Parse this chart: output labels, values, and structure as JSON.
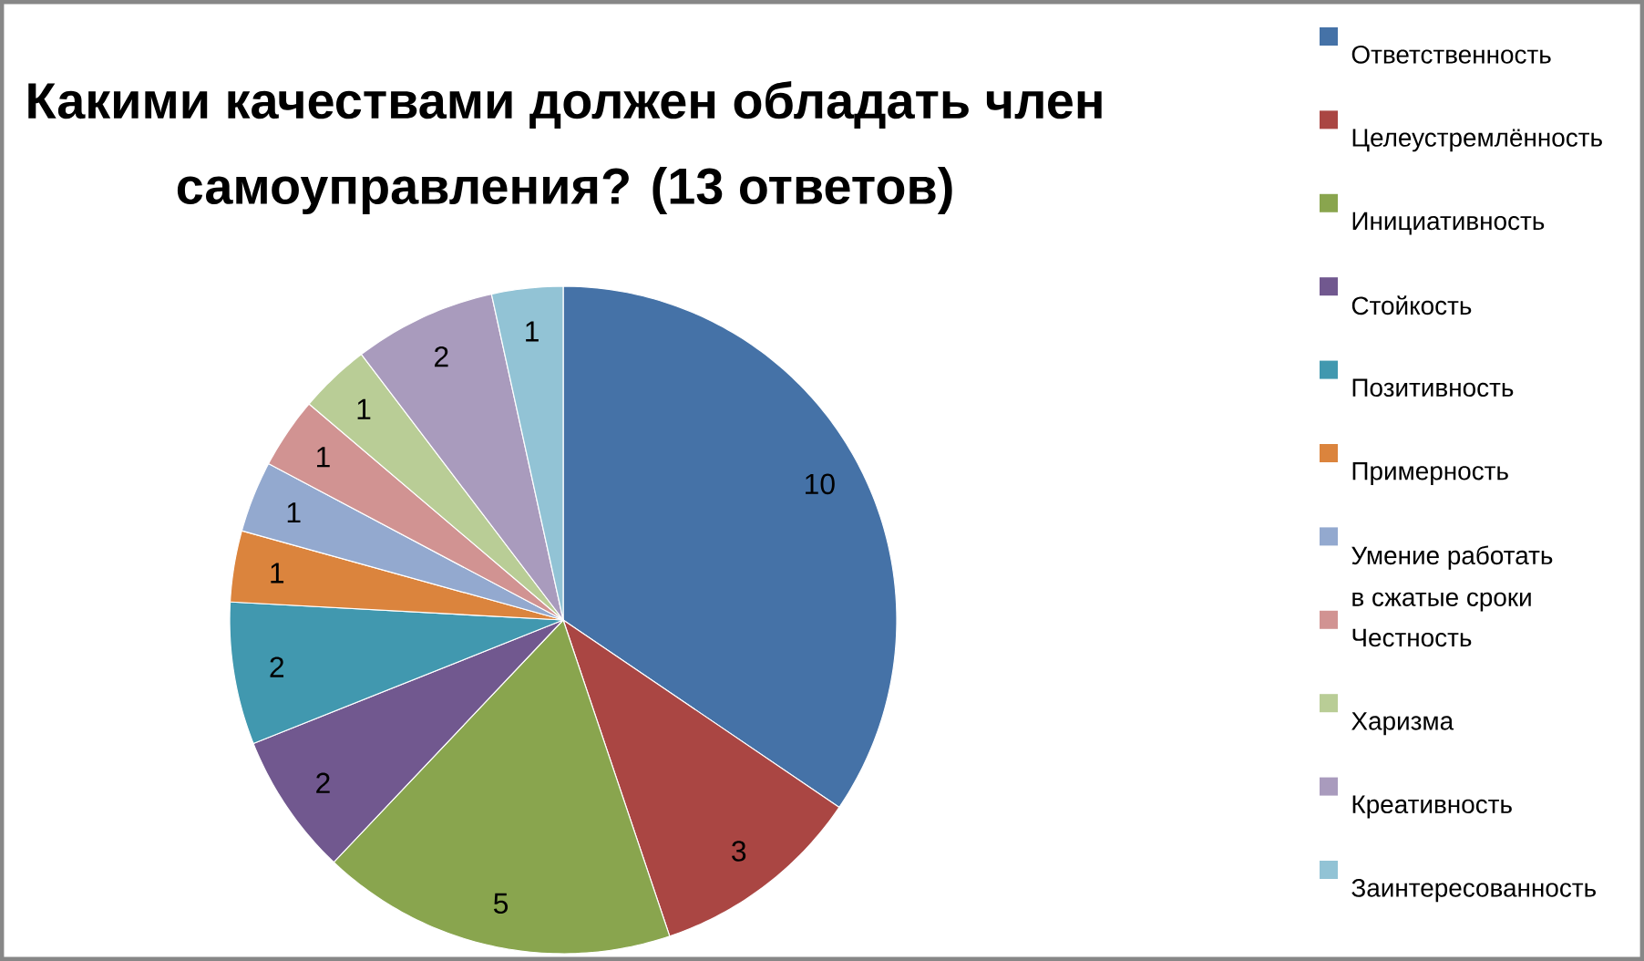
{
  "chart_data": {
    "type": "pie",
    "title": "Какими качествами должен обладать член самоуправления? (13 ответов)",
    "categories": [
      "Ответственность",
      "Целеустремлённость",
      "Инициативность",
      "Стойкость",
      "Позитивность",
      "Примерность",
      "Умение работать в сжатые сроки",
      "Честность",
      "Харизма",
      "Креативность",
      "Заинтересованность"
    ],
    "values": [
      10,
      3,
      5,
      2,
      2,
      1,
      1,
      1,
      1,
      2,
      1
    ],
    "colors": [
      "#4572a7",
      "#aa4643",
      "#89a54e",
      "#71588f",
      "#4198af",
      "#db843d",
      "#93a9cf",
      "#d19392",
      "#b9cd96",
      "#a99bbd",
      "#92c3d5"
    ],
    "data_labels": true,
    "legend": "right"
  }
}
